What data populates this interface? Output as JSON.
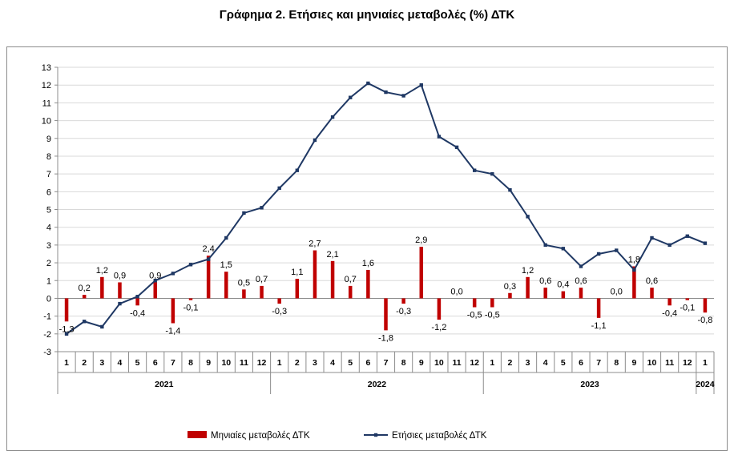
{
  "title": "Γράφημα 2. Ετήσιες και μηνιαίες μεταβολές (%) ΔΤΚ",
  "chart_data": {
    "type": "bar+line",
    "ylim": [
      -3,
      13
    ],
    "yticks": [
      -3,
      -2,
      -1,
      0,
      1,
      2,
      3,
      4,
      5,
      6,
      7,
      8,
      9,
      10,
      11,
      12,
      13
    ],
    "grid": true,
    "legend_position": "bottom",
    "month_labels": [
      "1",
      "2",
      "3",
      "4",
      "5",
      "6",
      "7",
      "8",
      "9",
      "10",
      "11",
      "12",
      "1",
      "2",
      "3",
      "4",
      "5",
      "6",
      "7",
      "8",
      "9",
      "10",
      "11",
      "12",
      "1",
      "2",
      "3",
      "4",
      "5",
      "6",
      "7",
      "8",
      "9",
      "10",
      "11",
      "12",
      "1"
    ],
    "year_groups": [
      {
        "label": "2021",
        "start": 0,
        "end": 11
      },
      {
        "label": "2022",
        "start": 12,
        "end": 23
      },
      {
        "label": "2023",
        "start": 24,
        "end": 35
      },
      {
        "label": "2024",
        "start": 36,
        "end": 36
      }
    ],
    "series": [
      {
        "name": "Μηνιαίες μεταβολές ΔΤΚ",
        "kind": "bar",
        "color": "#c00000",
        "values": [
          -1.3,
          0.2,
          1.2,
          0.9,
          -0.4,
          0.9,
          -1.4,
          -0.1,
          2.4,
          1.5,
          0.5,
          0.7,
          -0.3,
          1.1,
          2.7,
          2.1,
          0.7,
          1.6,
          -1.8,
          -0.3,
          2.9,
          -1.2,
          0.0,
          -0.5,
          -0.5,
          0.3,
          1.2,
          0.6,
          0.4,
          0.6,
          -1.1,
          0.0,
          1.8,
          0.6,
          -0.4,
          -0.1,
          -0.8
        ],
        "labels": [
          "-1,3",
          "0,2",
          "1,2",
          "0,9",
          "-0,4",
          "0,9",
          "-1,4",
          "-0,1",
          "2,4",
          "1,5",
          "0,5",
          "0,7",
          "-0,3",
          "1,1",
          "2,7",
          "2,1",
          "0,7",
          "1,6",
          "-1,8",
          "-0,3",
          "2,9",
          "-1,2",
          "0,0",
          "-0,5",
          "-0,5",
          "0,3",
          "1,2",
          "0,6",
          "0,4",
          "0,6",
          "-1,1",
          "0,0",
          "1,8",
          "0,6",
          "-0,4",
          "-0,1",
          "-0,8"
        ]
      },
      {
        "name": "Ετήσιες μεταβολές ΔΤΚ",
        "kind": "line",
        "color": "#1f3864",
        "values": [
          -2.0,
          -1.3,
          -1.6,
          -0.3,
          0.1,
          1.0,
          1.4,
          1.9,
          2.2,
          3.4,
          4.8,
          5.1,
          6.2,
          7.2,
          8.9,
          10.2,
          11.3,
          12.1,
          11.6,
          11.4,
          12.0,
          9.1,
          8.5,
          7.2,
          7.0,
          6.1,
          4.6,
          3.0,
          2.8,
          1.8,
          2.5,
          2.7,
          1.6,
          3.4,
          3.0,
          3.5,
          3.1
        ]
      }
    ]
  }
}
